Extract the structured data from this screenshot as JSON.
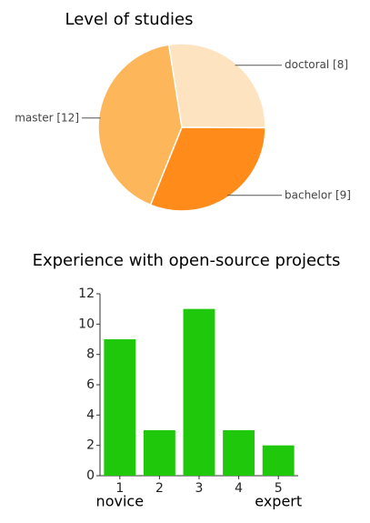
{
  "chart_data": [
    {
      "type": "pie",
      "title": "Level of studies",
      "categories": [
        "doctoral [8]",
        "bachelor [9]",
        "master [12]"
      ],
      "values": [
        8,
        9,
        12
      ],
      "colors": [
        "#fde3bf",
        "#ff8c1a",
        "#fdb75a"
      ]
    },
    {
      "type": "bar",
      "title": "Experience with open-source projects",
      "categories": [
        "1",
        "2",
        "3",
        "4",
        "5"
      ],
      "category_notes": [
        "novice",
        null,
        null,
        null,
        "expert"
      ],
      "values": [
        9,
        3,
        11,
        3,
        2
      ],
      "color": "#1fc80a",
      "ylim": [
        0,
        12
      ],
      "yticks": [
        0,
        2,
        4,
        6,
        8,
        10,
        12
      ]
    }
  ]
}
